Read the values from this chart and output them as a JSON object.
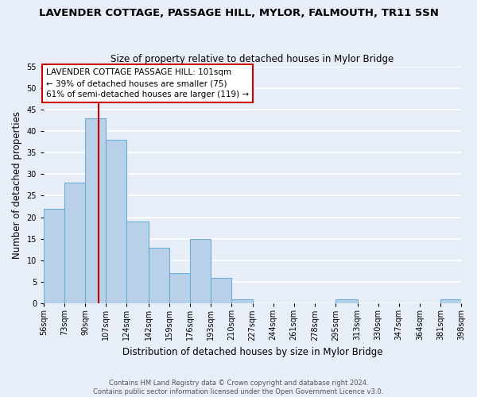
{
  "title": "LAVENDER COTTAGE, PASSAGE HILL, MYLOR, FALMOUTH, TR11 5SN",
  "subtitle": "Size of property relative to detached houses in Mylor Bridge",
  "xlabel": "Distribution of detached houses by size in Mylor Bridge",
  "ylabel": "Number of detached properties",
  "bin_labels": [
    "56sqm",
    "73sqm",
    "90sqm",
    "107sqm",
    "124sqm",
    "142sqm",
    "159sqm",
    "176sqm",
    "193sqm",
    "210sqm",
    "227sqm",
    "244sqm",
    "261sqm",
    "278sqm",
    "295sqm",
    "313sqm",
    "330sqm",
    "347sqm",
    "364sqm",
    "381sqm",
    "398sqm"
  ],
  "bin_edges": [
    56,
    73,
    90,
    107,
    124,
    142,
    159,
    176,
    193,
    210,
    227,
    244,
    261,
    278,
    295,
    313,
    330,
    347,
    364,
    381,
    398
  ],
  "counts": [
    22,
    28,
    43,
    38,
    19,
    13,
    7,
    15,
    6,
    1,
    0,
    0,
    0,
    0,
    1,
    0,
    0,
    0,
    0,
    1
  ],
  "bar_color": "#b8d0e8",
  "bar_edge_color": "#6aaed6",
  "vline_x": 101,
  "vline_color": "#cc0000",
  "annotation_text": "LAVENDER COTTAGE PASSAGE HILL: 101sqm\n← 39% of detached houses are smaller (75)\n61% of semi-detached houses are larger (119) →",
  "annotation_box_color": "white",
  "annotation_box_edge_color": "#cc0000",
  "ylim": [
    0,
    55
  ],
  "yticks": [
    0,
    5,
    10,
    15,
    20,
    25,
    30,
    35,
    40,
    45,
    50,
    55
  ],
  "footer_text": "Contains HM Land Registry data © Crown copyright and database right 2024.\nContains public sector information licensed under the Open Government Licence v3.0.",
  "background_color": "#e8eef8",
  "grid_color": "white",
  "title_fontsize": 9.5,
  "subtitle_fontsize": 8.5,
  "tick_fontsize": 7,
  "ylabel_fontsize": 8.5,
  "xlabel_fontsize": 8.5,
  "annotation_fontsize": 7.5,
  "footer_fontsize": 6.0
}
